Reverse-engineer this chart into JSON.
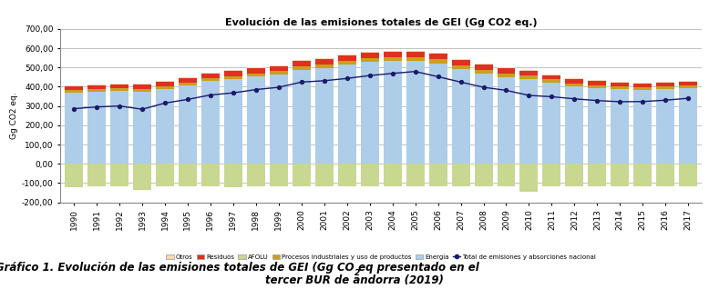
{
  "years": [
    1990,
    1991,
    1992,
    1993,
    1994,
    1995,
    1996,
    1997,
    1998,
    1999,
    2000,
    2001,
    2002,
    2003,
    2004,
    2005,
    2006,
    2007,
    2008,
    2009,
    2010,
    2011,
    2012,
    2013,
    2014,
    2015,
    2016,
    2017
  ],
  "energia": [
    370,
    375,
    378,
    375,
    388,
    405,
    428,
    438,
    452,
    462,
    487,
    497,
    513,
    527,
    532,
    533,
    522,
    492,
    470,
    451,
    441,
    422,
    402,
    392,
    387,
    382,
    387,
    392
  ],
  "proc_ind": [
    12,
    13,
    13,
    14,
    15,
    16,
    16,
    17,
    18,
    19,
    20,
    20,
    21,
    21,
    22,
    22,
    21,
    20,
    19,
    18,
    17,
    16,
    15,
    15,
    14,
    14,
    14,
    14
  ],
  "residuos": [
    18,
    20,
    22,
    22,
    23,
    24,
    24,
    25,
    26,
    26,
    27,
    27,
    27,
    27,
    28,
    28,
    27,
    26,
    25,
    25,
    23,
    22,
    22,
    21,
    20,
    19,
    18,
    18
  ],
  "otros": [
    5,
    5,
    5,
    5,
    5,
    5,
    5,
    5,
    5,
    5,
    5,
    5,
    5,
    5,
    5,
    5,
    5,
    5,
    5,
    5,
    5,
    5,
    5,
    5,
    5,
    5,
    5,
    5
  ],
  "afolu": [
    -120,
    -118,
    -116,
    -135,
    -118,
    -118,
    -118,
    -120,
    -118,
    -118,
    -118,
    -118,
    -118,
    -118,
    -118,
    -118,
    -118,
    -118,
    -118,
    -118,
    -145,
    -118,
    -118,
    -118,
    -118,
    -118,
    -118,
    -118
  ],
  "total_line": [
    286,
    295,
    300,
    283,
    315,
    334,
    357,
    368,
    385,
    397,
    424,
    431,
    443,
    458,
    469,
    479,
    452,
    424,
    397,
    381,
    355,
    348,
    337,
    328,
    322,
    323,
    330,
    340
  ],
  "title": "Evolución de las emisiones totales de GEI (Gg CO2 eq.)",
  "ylabel": "Gg CO2 eq.",
  "ylim_min": -200,
  "ylim_max": 700,
  "yticks": [
    -200,
    -100,
    0,
    100,
    200,
    300,
    400,
    500,
    600,
    700
  ],
  "color_energia": "#aecde8",
  "color_proc_ind": "#c8a020",
  "color_afolu": "#c8d890",
  "color_residuos": "#e03020",
  "color_otros": "#f8d8b0",
  "color_line": "#1a1a6e",
  "color_grid": "#aaaaaa",
  "bar_width": 0.8
}
